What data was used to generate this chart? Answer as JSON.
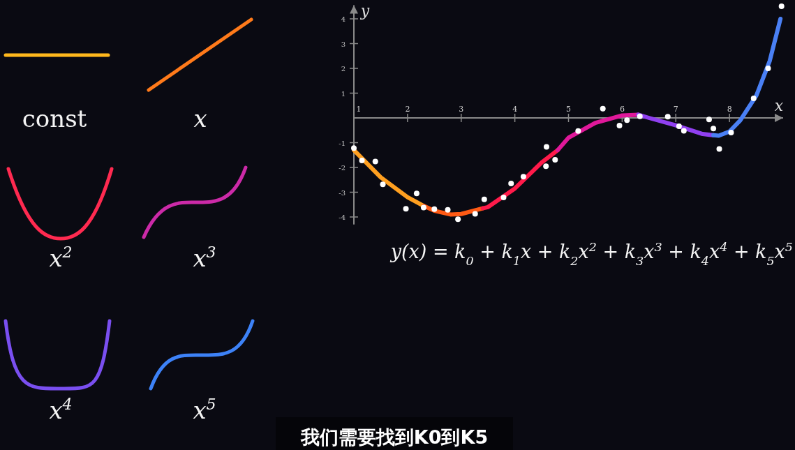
{
  "chart_data": {
    "type": "scatter",
    "xlabel": "x",
    "ylabel": "y",
    "xlim": [
      1,
      9
    ],
    "ylim": [
      -4.3,
      4.55
    ],
    "xticks": [
      1,
      2,
      3,
      4,
      5,
      6,
      7,
      8
    ],
    "yticks": [
      -4,
      -3,
      -2,
      -1,
      1,
      2,
      3,
      4
    ],
    "series": [
      {
        "marker": "circle",
        "color": "#ffffff",
        "x": [
          1.0,
          1.15,
          1.4,
          1.54,
          1.97,
          2.17,
          2.3,
          2.5,
          2.75,
          2.94,
          3.26,
          3.43,
          3.79,
          3.93,
          4.16,
          4.59,
          4.58,
          4.75,
          5.18,
          5.64,
          5.95,
          6.09,
          6.33,
          6.85,
          7.06,
          7.15,
          7.62,
          7.7,
          7.81,
          8.03,
          8.45,
          8.72,
          8.97
        ],
        "values": [
          -1.22,
          -1.72,
          -1.76,
          -2.68,
          -3.67,
          -3.05,
          -3.62,
          -3.68,
          -3.71,
          -4.09,
          -3.87,
          -3.29,
          -3.21,
          -2.65,
          -2.37,
          -1.17,
          -1.95,
          -1.69,
          -0.53,
          0.37,
          -0.31,
          -0.09,
          0.06,
          0.05,
          -0.34,
          -0.52,
          -0.06,
          -0.43,
          -1.25,
          -0.59,
          0.79,
          2.0,
          4.51
        ]
      },
      {
        "type": "line",
        "color": "#ffa020",
        "x": [
          1.0,
          1.5,
          2.0,
          2.3
        ],
        "values": [
          -1.3,
          -2.4,
          -3.2,
          -3.55
        ]
      },
      {
        "type": "line",
        "color": "#ff5a14",
        "x": [
          2.3,
          2.5,
          2.8,
          3.0,
          3.4
        ],
        "values": [
          -3.55,
          -3.75,
          -3.9,
          -3.88,
          -3.65
        ]
      },
      {
        "type": "line",
        "color": "#ff1a4a",
        "x": [
          3.4,
          3.5,
          4.0,
          4.5,
          4.8
        ],
        "values": [
          -3.65,
          -3.6,
          -2.85,
          -1.8,
          -1.3
        ]
      },
      {
        "type": "line",
        "color": "#e0189a",
        "x": [
          4.8,
          5.0,
          5.5,
          6.0,
          6.3
        ],
        "values": [
          -1.3,
          -0.8,
          -0.2,
          0.1,
          0.13
        ]
      },
      {
        "type": "line",
        "color": "#9040f0",
        "x": [
          6.3,
          6.5,
          7.0,
          7.5,
          7.7
        ],
        "values": [
          0.13,
          0.0,
          -0.3,
          -0.65,
          -0.7
        ]
      },
      {
        "type": "line",
        "color": "#4a80f5",
        "x": [
          7.7,
          7.8,
          8.0,
          8.2,
          8.5,
          8.75,
          8.95
        ],
        "values": [
          -0.7,
          -0.72,
          -0.55,
          -0.1,
          0.9,
          2.3,
          4.0
        ]
      }
    ],
    "annotations": [
      "const",
      "x",
      "x$^{2}$",
      "x$^{3}$",
      "x$^{4}$",
      "x$^{5}$",
      "y(x) = k$_{0}$ + k$_{1}$x + k$_{2}$x$^{2}$ + k$_{3}$x$^{3}$ + k$_{4}$x$^{4}$ + k$_{5}$x$^{5}$",
      "我们需要找到K0到K5"
    ]
  }
}
